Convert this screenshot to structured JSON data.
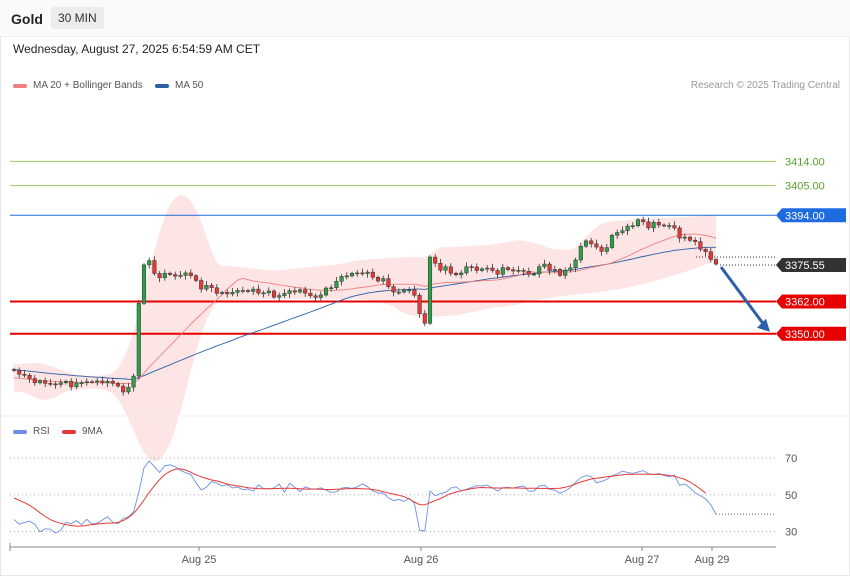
{
  "header": {
    "symbol": "Gold",
    "timeframe": "30 MIN",
    "datetime": "Wednesday, August 27, 2025 6:54:59 AM CET"
  },
  "legend": {
    "ma20": "MA 20 + Bollinger Bands",
    "ma50": "MA 50",
    "rsi": "RSI",
    "rsi_ma": "9MA"
  },
  "credit": "Research © 2025 Trading Central",
  "colors": {
    "ma20": "#f08080",
    "ma50": "#2c5fa8",
    "bands": "#fde0e0",
    "candle_up": "#2e9e49",
    "candle_down": "#e53935",
    "resistance_green": "#9ccc65",
    "pivot_blue": "#1e6be0",
    "support_red": "#e60000",
    "current_price": "#333333",
    "arrow": "#2c5fa8",
    "rsi": "#6d8fe3",
    "rsi_ma": "#e53935"
  },
  "chart_data": [
    {
      "type": "candlestick",
      "title": "Gold",
      "x_labels": [
        "Aug 25",
        "Aug 26",
        "Aug 27",
        "Aug 29"
      ],
      "ylim": [
        3318,
        3442
      ],
      "levels": [
        {
          "value": 3414.0,
          "label": "3414.00",
          "kind": "resistance"
        },
        {
          "value": 3405.0,
          "label": "3405.00",
          "kind": "resistance"
        },
        {
          "value": 3394.0,
          "label": "3394.00",
          "kind": "pivot"
        },
        {
          "value": 3362.0,
          "label": "3362.00",
          "kind": "support"
        },
        {
          "value": 3350.0,
          "label": "3350.00",
          "kind": "support"
        }
      ],
      "current_price": {
        "value": 3375.55,
        "label": "3375.55"
      },
      "forecast_arrow": {
        "from": 3375.55,
        "to": 3350.0
      },
      "close": [
        3336.4,
        3335.0,
        3334.6,
        3333.4,
        3331.8,
        3332.6,
        3331.6,
        3331.4,
        3331.2,
        3331.8,
        3332.4,
        3330.3,
        3331.8,
        3331.8,
        3332.2,
        3332.1,
        3332.5,
        3331.8,
        3332.4,
        3331.6,
        3330.6,
        3328.4,
        3330.2,
        3334.3,
        3361.3,
        3375.6,
        3377.2,
        3372.4,
        3370.8,
        3372.5,
        3372.0,
        3371.4,
        3371.7,
        3372.6,
        3371.6,
        3369.8,
        3366.6,
        3368.0,
        3367.1,
        3365.0,
        3365.4,
        3364.8,
        3365.4,
        3366.1,
        3366.1,
        3365.7,
        3366.6,
        3365.1,
        3365.2,
        3365.9,
        3363.6,
        3364.2,
        3365.0,
        3366.0,
        3365.5,
        3366.4,
        3365.1,
        3364.1,
        3363.5,
        3364.4,
        3367.0,
        3367.1,
        3369.5,
        3371.3,
        3371.5,
        3372.5,
        3372.6,
        3372.4,
        3372.9,
        3371.0,
        3369.6,
        3370.5,
        3367.5,
        3365.5,
        3365.5,
        3366.3,
        3366.3,
        3364.3,
        3357.5,
        3353.9,
        3378.5,
        3376.2,
        3373.6,
        3374.9,
        3372.5,
        3371.9,
        3372.6,
        3374.9,
        3374.8,
        3373.5,
        3374.1,
        3374.4,
        3373.5,
        3372.1,
        3374.6,
        3373.8,
        3373.3,
        3373.6,
        3373.2,
        3372.1,
        3372.2,
        3374.9,
        3375.9,
        3373.5,
        3373.9,
        3371.7,
        3373.6,
        3374.5,
        3377.4,
        3382.5,
        3384.5,
        3383.4,
        3382.2,
        3380.6,
        3382.0,
        3386.6,
        3387.6,
        3388.3,
        3390.0,
        3390.1,
        3392.4,
        3391.6,
        3389.3,
        3391.4,
        3390.4,
        3390.1,
        3390.2,
        3389.3,
        3385.5,
        3385.9,
        3384.7,
        3384.2,
        3381.4,
        3380.5,
        3377.6,
        3375.9
      ],
      "ma20": [
        3333.7,
        3333.5,
        3333.3,
        3333.1,
        3332.8,
        3332.6,
        3332.6,
        3332.4,
        3332.3,
        3332.2,
        3332.2,
        3332.0,
        3331.9,
        3331.9,
        3331.9,
        3331.9,
        3331.8,
        3331.8,
        3331.8,
        3331.7,
        3331.6,
        3331.5,
        3331.5,
        3331.6,
        3333.1,
        3335.4,
        3337.6,
        3339.6,
        3341.6,
        3343.6,
        3345.6,
        3347.6,
        3349.6,
        3351.6,
        3353.6,
        3355.5,
        3357.3,
        3359.2,
        3360.9,
        3362.7,
        3364.5,
        3366.6,
        3368.3,
        3369.9,
        3370.6,
        3370.1,
        3369.6,
        3369.3,
        3369.1,
        3368.9,
        3368.5,
        3368.2,
        3367.9,
        3367.6,
        3367.3,
        3367.1,
        3366.8,
        3366.5,
        3366.3,
        3366.2,
        3366.2,
        3366.1,
        3366.2,
        3366.3,
        3366.4,
        3366.7,
        3367.0,
        3367.2,
        3367.5,
        3367.8,
        3368.1,
        3368.3,
        3368.4,
        3368.4,
        3368.4,
        3368.4,
        3368.4,
        3368.4,
        3368.1,
        3367.6,
        3368.2,
        3368.6,
        3368.8,
        3369.0,
        3369.1,
        3369.1,
        3369.2,
        3369.3,
        3369.4,
        3369.5,
        3369.7,
        3369.8,
        3369.9,
        3370.0,
        3370.4,
        3370.8,
        3371.2,
        3371.6,
        3372.3,
        3373.2,
        3372.9,
        3372.8,
        3372.9,
        3372.8,
        3372.9,
        3372.9,
        3373.0,
        3373.0,
        3373.2,
        3373.6,
        3374.1,
        3374.6,
        3375.0,
        3375.4,
        3375.8,
        3376.4,
        3377.2,
        3378.0,
        3378.8,
        3379.7,
        3380.7,
        3381.6,
        3382.4,
        3383.3,
        3384.0,
        3384.7,
        3385.5,
        3386.1,
        3386.6,
        3386.9,
        3387.0,
        3387.0,
        3386.8,
        3386.5,
        3386.1,
        3385.6
      ],
      "ma50": [
        3336.8,
        3336.5,
        3336.3,
        3336.1,
        3335.9,
        3335.7,
        3335.5,
        3335.3,
        3335.1,
        3334.9,
        3334.8,
        3334.6,
        3334.4,
        3334.3,
        3334.1,
        3334.0,
        3333.9,
        3333.8,
        3333.6,
        3333.5,
        3333.4,
        3333.3,
        3333.1,
        3333.1,
        3333.7,
        3334.5,
        3335.3,
        3336.1,
        3336.9,
        3337.7,
        3338.5,
        3339.3,
        3340.1,
        3340.9,
        3341.7,
        3342.5,
        3343.2,
        3344.0,
        3344.7,
        3345.5,
        3346.2,
        3346.9,
        3347.6,
        3348.4,
        3349.1,
        3349.8,
        3350.5,
        3351.1,
        3351.8,
        3352.5,
        3353.2,
        3353.9,
        3354.6,
        3355.3,
        3356.0,
        3356.7,
        3357.4,
        3358.1,
        3358.8,
        3359.5,
        3360.3,
        3361.0,
        3361.8,
        3362.5,
        3363.2,
        3363.8,
        3364.3,
        3364.7,
        3365.1,
        3365.4,
        3365.7,
        3365.9,
        3366.1,
        3366.2,
        3366.3,
        3366.4,
        3366.5,
        3366.6,
        3366.6,
        3366.5,
        3366.9,
        3367.3,
        3367.6,
        3367.9,
        3368.2,
        3368.5,
        3368.8,
        3369.1,
        3369.4,
        3369.7,
        3370.0,
        3370.3,
        3370.6,
        3370.8,
        3371.1,
        3371.3,
        3371.6,
        3371.8,
        3372.0,
        3372.2,
        3372.4,
        3372.7,
        3372.9,
        3373.0,
        3373.2,
        3373.3,
        3373.5,
        3373.7,
        3373.9,
        3374.3,
        3374.6,
        3374.9,
        3375.2,
        3375.5,
        3375.8,
        3376.2,
        3376.6,
        3377.0,
        3377.4,
        3377.8,
        3378.3,
        3378.7,
        3379.1,
        3379.5,
        3379.9,
        3380.3,
        3380.6,
        3381.0,
        3381.2,
        3381.4,
        3381.6,
        3381.8,
        3382.0,
        3382.1,
        3382.1,
        3382.1
      ],
      "bb_upper": [
        3338.8,
        3338.8,
        3339.0,
        3339.2,
        3339.2,
        3339.0,
        3338.6,
        3338.0,
        3337.4,
        3336.6,
        3336.0,
        3335.4,
        3335.0,
        3334.6,
        3334.5,
        3334.4,
        3334.4,
        3334.6,
        3334.8,
        3335.5,
        3337.2,
        3340.6,
        3345.0,
        3351.0,
        3358.0,
        3366.0,
        3373.8,
        3381.0,
        3387.6,
        3393.4,
        3397.8,
        3400.4,
        3401.6,
        3401.0,
        3399.2,
        3396.0,
        3391.6,
        3386.2,
        3380.8,
        3376.4,
        3375.0,
        3375.2,
        3375.0,
        3374.8,
        3374.6,
        3374.4,
        3374.2,
        3374.0,
        3373.8,
        3373.6,
        3373.6,
        3373.6,
        3373.8,
        3374.0,
        3374.2,
        3374.4,
        3374.6,
        3374.8,
        3375.0,
        3375.2,
        3375.4,
        3375.6,
        3375.8,
        3376.0,
        3376.4,
        3376.8,
        3377.2,
        3377.4,
        3377.6,
        3377.8,
        3377.9,
        3378.0,
        3378.1,
        3378.2,
        3378.3,
        3378.4,
        3378.4,
        3378.4,
        3378.4,
        3378.4,
        3379.5,
        3381.0,
        3382.0,
        3382.2,
        3382.3,
        3382.3,
        3382.4,
        3382.5,
        3382.6,
        3382.8,
        3382.9,
        3383.0,
        3383.2,
        3383.4,
        3383.7,
        3384.1,
        3384.5,
        3384.8,
        3384.6,
        3384.2,
        3383.8,
        3383.2,
        3382.6,
        3381.8,
        3381.4,
        3381.2,
        3381.2,
        3381.4,
        3382.0,
        3384.0,
        3386.0,
        3388.0,
        3389.6,
        3390.8,
        3391.4,
        3391.7,
        3391.9,
        3392.0,
        3392.2,
        3392.4,
        3392.5,
        3392.6,
        3392.7,
        3392.8,
        3392.9,
        3393.0,
        3393.1,
        3393.2,
        3393.3,
        3393.4,
        3393.5,
        3393.6,
        3393.7,
        3393.8,
        3394.0,
        3394.2
      ],
      "bb_lower": [
        3328.6,
        3328.4,
        3328.2,
        3327.4,
        3326.4,
        3325.6,
        3325.5,
        3325.8,
        3326.4,
        3327.6,
        3328.6,
        3329.0,
        3329.2,
        3329.4,
        3329.4,
        3329.6,
        3329.6,
        3329.4,
        3328.8,
        3327.9,
        3325.8,
        3322.4,
        3318.4,
        3314.0,
        3309.6,
        3306.0,
        3303.6,
        3302.6,
        3303.2,
        3305.4,
        3309.2,
        3314.6,
        3321.2,
        3328.6,
        3336.2,
        3343.4,
        3349.8,
        3355.0,
        3359.0,
        3361.6,
        3362.4,
        3362.4,
        3362.4,
        3362.4,
        3362.5,
        3362.6,
        3362.7,
        3362.8,
        3362.9,
        3362.9,
        3362.9,
        3362.9,
        3362.9,
        3362.9,
        3362.9,
        3362.9,
        3362.9,
        3362.9,
        3362.9,
        3362.9,
        3362.9,
        3362.9,
        3362.9,
        3362.9,
        3362.9,
        3362.9,
        3362.9,
        3362.8,
        3362.6,
        3362.3,
        3362.0,
        3361.5,
        3360.9,
        3360.0,
        3358.8,
        3357.6,
        3357.0,
        3356.7,
        3356.5,
        3356.4,
        3356.4,
        3356.4,
        3356.5,
        3356.6,
        3356.7,
        3356.9,
        3357.2,
        3357.6,
        3358.0,
        3358.4,
        3358.9,
        3359.3,
        3359.6,
        3359.8,
        3360.0,
        3360.2,
        3360.6,
        3361.0,
        3361.5,
        3362.0,
        3362.3,
        3362.7,
        3363.0,
        3363.3,
        3363.6,
        3363.9,
        3364.2,
        3364.4,
        3364.6,
        3364.8,
        3365.0,
        3365.2,
        3365.4,
        3365.6,
        3365.9,
        3366.2,
        3366.5,
        3366.8,
        3367.2,
        3367.6,
        3368.0,
        3368.5,
        3369.0,
        3369.5,
        3370.0,
        3370.6,
        3371.2,
        3371.8,
        3372.4,
        3373.0,
        3373.6,
        3374.3,
        3375.0,
        3375.7,
        3376.4,
        3377.1
      ]
    },
    {
      "type": "line",
      "title": "RSI",
      "x_labels": [
        "Aug 25",
        "Aug 26",
        "Aug 27",
        "Aug 29"
      ],
      "yticks": [
        70,
        50,
        30
      ],
      "ylim": [
        26.5,
        75.5
      ],
      "series": [
        {
          "name": "RSI",
          "values": [
            36.6,
            34.0,
            35.0,
            35.7,
            34.0,
            29.9,
            31.5,
            31.3,
            29.1,
            30.8,
            35.1,
            34.3,
            36.0,
            33.7,
            36.6,
            34.1,
            34.5,
            36.3,
            38.1,
            35.0,
            34.2,
            37.1,
            38.0,
            40.8,
            51.3,
            64.8,
            68.5,
            65.3,
            62.2,
            65.8,
            66.3,
            65.3,
            63.4,
            62.0,
            61.1,
            56.6,
            52.7,
            54.1,
            57.3,
            56.4,
            54.8,
            55.5,
            53.8,
            54.2,
            52.8,
            53.2,
            52.1,
            55.4,
            53.4,
            53.2,
            53.7,
            55.9,
            51.5,
            56.3,
            54.1,
            51.8,
            54.4,
            53.3,
            53.1,
            53.8,
            52.6,
            51.4,
            51.6,
            53.7,
            54.0,
            53.5,
            54.3,
            56.0,
            54.4,
            52.2,
            51.0,
            51.0,
            48.4,
            46.8,
            47.5,
            46.4,
            48.1,
            45.4,
            30.7,
            30.3,
            52.1,
            49.5,
            50.7,
            51.4,
            53.7,
            54.4,
            52.2,
            53.0,
            54.0,
            55.0,
            54.8,
            55.3,
            53.8,
            52.1,
            53.9,
            54.1,
            53.6,
            54.4,
            54.8,
            52.0,
            52.1,
            54.8,
            55.3,
            53.0,
            52.6,
            50.9,
            52.1,
            54.0,
            56.8,
            59.4,
            60.5,
            60.0,
            56.6,
            57.3,
            58.4,
            60.5,
            61.3,
            62.9,
            62.1,
            61.7,
            62.4,
            63.2,
            61.5,
            61.0,
            61.6,
            60.5,
            59.9,
            60.8,
            55.2,
            55.9,
            53.8,
            51.1,
            49.6,
            47.8,
            44.6,
            39.5
          ]
        },
        {
          "name": "9MA",
          "values": [
            48.3,
            47.0,
            45.8,
            44.3,
            42.4,
            40.2,
            38.2,
            36.5,
            35.3,
            34.5,
            33.8,
            33.3,
            33.0,
            33.0,
            33.4,
            33.8,
            34.1,
            34.4,
            34.6,
            34.6,
            35.0,
            36.0,
            37.6,
            39.9,
            43.2,
            47.2,
            51.3,
            55.0,
            58.3,
            61.0,
            62.8,
            63.9,
            64.1,
            63.5,
            62.3,
            60.9,
            59.8,
            58.9,
            58.1,
            57.6,
            56.7,
            55.9,
            55.3,
            54.8,
            54.4,
            53.9,
            53.6,
            53.4,
            53.3,
            53.3,
            53.4,
            53.5,
            53.6,
            53.6,
            53.5,
            53.3,
            53.1,
            53.1,
            53.1,
            53.0,
            52.9,
            52.9,
            53.0,
            53.1,
            53.3,
            53.4,
            53.4,
            53.3,
            53.2,
            52.9,
            52.4,
            51.7,
            51.0,
            50.4,
            49.8,
            49.0,
            47.8,
            46.1,
            44.7,
            44.5,
            45.8,
            46.8,
            48.0,
            49.4,
            50.7,
            51.5,
            52.2,
            52.8,
            53.4,
            53.8,
            54.0,
            53.9,
            53.8,
            53.7,
            53.7,
            53.7,
            53.7,
            53.7,
            53.6,
            53.6,
            53.6,
            53.5,
            53.5,
            53.4,
            53.5,
            53.6,
            54.1,
            54.9,
            55.9,
            57.0,
            57.8,
            58.6,
            59.0,
            59.4,
            59.8,
            60.1,
            60.5,
            60.9,
            61.1,
            61.2,
            61.3,
            61.3,
            61.2,
            61.1,
            61.1,
            60.9,
            60.6,
            60.1,
            59.3,
            58.4,
            57.0,
            55.2,
            53.2,
            50.9
          ]
        }
      ]
    }
  ]
}
